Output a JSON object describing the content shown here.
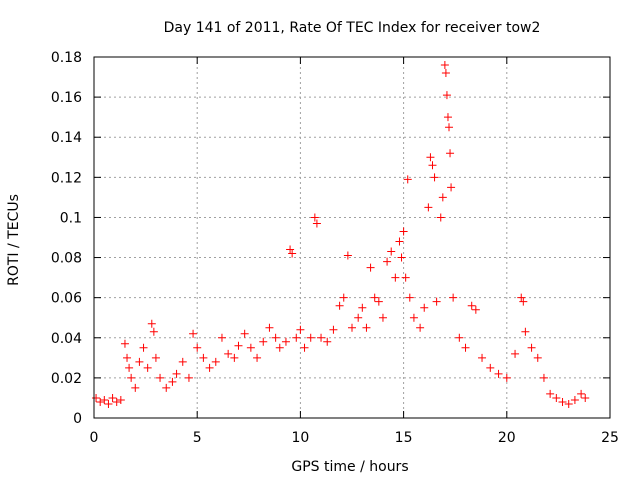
{
  "chart_data": {
    "type": "scatter",
    "title": "Day 141 of 2011, Rate Of TEC Index for receiver tow2",
    "xlabel": "GPS time / hours",
    "ylabel": "ROTI / TECUs",
    "xlim": [
      0,
      25
    ],
    "ylim": [
      0,
      0.18
    ],
    "xticks": [
      0,
      5,
      10,
      15,
      20,
      25
    ],
    "yticks": [
      0,
      0.02,
      0.04,
      0.06,
      0.08,
      0.1,
      0.12,
      0.14,
      0.16,
      0.18
    ],
    "xtick_labels": [
      "0",
      "5",
      "10",
      "15",
      "20",
      "25"
    ],
    "ytick_labels": [
      "0",
      "0.02",
      "0.04",
      "0.06",
      "0.08",
      "0.1",
      "0.12",
      "0.14",
      "0.16",
      "0.18"
    ],
    "grid": true,
    "marker": "+",
    "color": "#ff0000",
    "series": [
      {
        "name": "ROTI",
        "points": [
          [
            0.1,
            0.01
          ],
          [
            0.3,
            0.008
          ],
          [
            0.5,
            0.009
          ],
          [
            0.7,
            0.007
          ],
          [
            0.9,
            0.01
          ],
          [
            1.1,
            0.008
          ],
          [
            1.3,
            0.009
          ],
          [
            1.5,
            0.037
          ],
          [
            1.6,
            0.03
          ],
          [
            1.7,
            0.025
          ],
          [
            1.8,
            0.02
          ],
          [
            2.0,
            0.015
          ],
          [
            2.2,
            0.028
          ],
          [
            2.4,
            0.035
          ],
          [
            2.6,
            0.025
          ],
          [
            2.8,
            0.047
          ],
          [
            2.9,
            0.043
          ],
          [
            3.0,
            0.03
          ],
          [
            3.2,
            0.02
          ],
          [
            3.5,
            0.015
          ],
          [
            3.8,
            0.018
          ],
          [
            4.0,
            0.022
          ],
          [
            4.3,
            0.028
          ],
          [
            4.6,
            0.02
          ],
          [
            4.8,
            0.042
          ],
          [
            5.0,
            0.035
          ],
          [
            5.3,
            0.03
          ],
          [
            5.6,
            0.025
          ],
          [
            5.9,
            0.028
          ],
          [
            6.2,
            0.04
          ],
          [
            6.5,
            0.032
          ],
          [
            6.8,
            0.03
          ],
          [
            7.0,
            0.036
          ],
          [
            7.3,
            0.042
          ],
          [
            7.6,
            0.035
          ],
          [
            7.9,
            0.03
          ],
          [
            8.2,
            0.038
          ],
          [
            8.5,
            0.045
          ],
          [
            8.8,
            0.04
          ],
          [
            9.0,
            0.035
          ],
          [
            9.3,
            0.038
          ],
          [
            9.5,
            0.084
          ],
          [
            9.6,
            0.082
          ],
          [
            9.8,
            0.04
          ],
          [
            10.0,
            0.044
          ],
          [
            10.2,
            0.035
          ],
          [
            10.5,
            0.04
          ],
          [
            10.7,
            0.1
          ],
          [
            10.8,
            0.097
          ],
          [
            11.0,
            0.04
          ],
          [
            11.3,
            0.038
          ],
          [
            11.6,
            0.044
          ],
          [
            11.9,
            0.056
          ],
          [
            12.1,
            0.06
          ],
          [
            12.3,
            0.081
          ],
          [
            12.5,
            0.045
          ],
          [
            12.8,
            0.05
          ],
          [
            13.0,
            0.055
          ],
          [
            13.2,
            0.045
          ],
          [
            13.4,
            0.075
          ],
          [
            13.6,
            0.06
          ],
          [
            13.8,
            0.058
          ],
          [
            14.0,
            0.05
          ],
          [
            14.2,
            0.078
          ],
          [
            14.4,
            0.083
          ],
          [
            14.6,
            0.07
          ],
          [
            14.8,
            0.088
          ],
          [
            14.9,
            0.08
          ],
          [
            15.0,
            0.093
          ],
          [
            15.1,
            0.07
          ],
          [
            15.2,
            0.119
          ],
          [
            15.3,
            0.06
          ],
          [
            15.5,
            0.05
          ],
          [
            15.8,
            0.045
          ],
          [
            16.0,
            0.055
          ],
          [
            16.2,
            0.105
          ],
          [
            16.3,
            0.13
          ],
          [
            16.4,
            0.126
          ],
          [
            16.5,
            0.12
          ],
          [
            16.6,
            0.058
          ],
          [
            16.8,
            0.1
          ],
          [
            16.9,
            0.11
          ],
          [
            17.0,
            0.176
          ],
          [
            17.05,
            0.172
          ],
          [
            17.1,
            0.161
          ],
          [
            17.15,
            0.15
          ],
          [
            17.2,
            0.145
          ],
          [
            17.25,
            0.132
          ],
          [
            17.3,
            0.115
          ],
          [
            17.4,
            0.06
          ],
          [
            17.7,
            0.04
          ],
          [
            18.0,
            0.035
          ],
          [
            18.3,
            0.056
          ],
          [
            18.5,
            0.054
          ],
          [
            18.8,
            0.03
          ],
          [
            19.2,
            0.025
          ],
          [
            19.6,
            0.022
          ],
          [
            20.0,
            0.02
          ],
          [
            20.4,
            0.032
          ],
          [
            20.7,
            0.06
          ],
          [
            20.8,
            0.058
          ],
          [
            20.9,
            0.043
          ],
          [
            21.2,
            0.035
          ],
          [
            21.5,
            0.03
          ],
          [
            21.8,
            0.02
          ],
          [
            22.1,
            0.012
          ],
          [
            22.4,
            0.01
          ],
          [
            22.7,
            0.008
          ],
          [
            23.0,
            0.007
          ],
          [
            23.3,
            0.009
          ],
          [
            23.6,
            0.012
          ],
          [
            23.8,
            0.01
          ]
        ]
      }
    ]
  }
}
